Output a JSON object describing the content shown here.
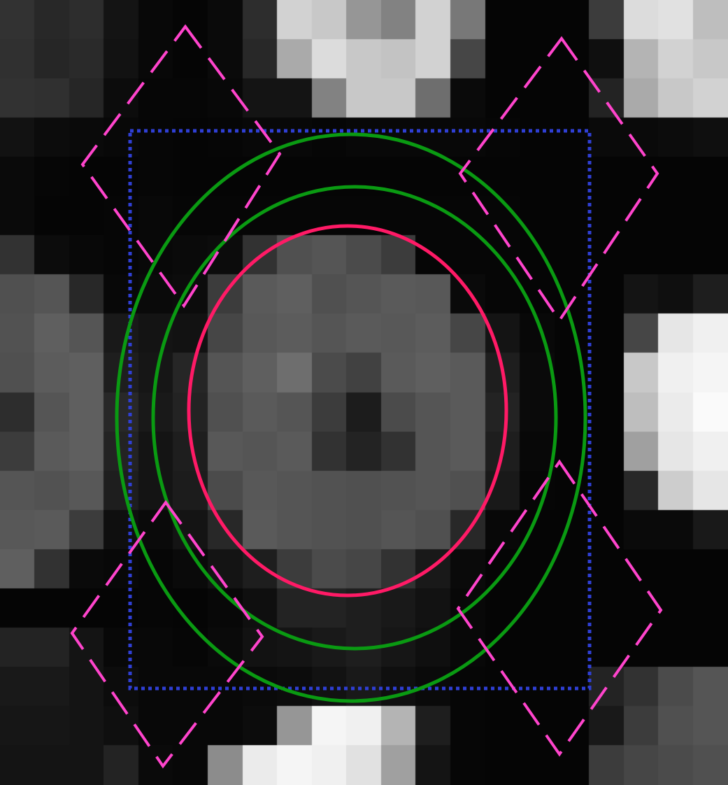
{
  "image": {
    "rows": 20,
    "cols": 21,
    "pixels": [
      [
        50,
        40,
        45,
        20,
        8,
        5,
        10,
        45,
        210,
        200,
        150,
        130,
        210,
        120,
        5,
        5,
        5,
        60,
        220,
        225,
        190
      ],
      [
        48,
        38,
        42,
        18,
        8,
        5,
        10,
        40,
        170,
        220,
        200,
        195,
        210,
        70,
        5,
        5,
        5,
        15,
        180,
        210,
        200
      ],
      [
        50,
        48,
        38,
        12,
        6,
        6,
        8,
        20,
        20,
        130,
        200,
        200,
        110,
        10,
        5,
        5,
        5,
        35,
        170,
        200,
        210
      ],
      [
        18,
        12,
        10,
        8,
        6,
        5,
        6,
        8,
        8,
        6,
        8,
        8,
        8,
        8,
        6,
        5,
        5,
        10,
        10,
        12,
        15
      ],
      [
        10,
        6,
        5,
        5,
        6,
        5,
        5,
        5,
        5,
        5,
        5,
        5,
        5,
        5,
        5,
        5,
        5,
        5,
        5,
        5,
        5
      ],
      [
        10,
        5,
        5,
        6,
        8,
        6,
        6,
        6,
        6,
        6,
        6,
        6,
        6,
        6,
        6,
        5,
        5,
        5,
        5,
        5,
        5
      ],
      [
        50,
        12,
        8,
        6,
        8,
        10,
        12,
        50,
        80,
        85,
        75,
        60,
        6,
        6,
        6,
        5,
        5,
        5,
        5,
        5,
        5
      ],
      [
        80,
        85,
        40,
        8,
        10,
        12,
        60,
        90,
        95,
        80,
        85,
        90,
        88,
        10,
        6,
        5,
        5,
        5,
        20,
        15,
        30
      ],
      [
        82,
        95,
        85,
        25,
        20,
        18,
        70,
        88,
        92,
        85,
        90,
        88,
        92,
        70,
        20,
        8,
        5,
        5,
        70,
        230,
        240
      ],
      [
        80,
        92,
        95,
        30,
        22,
        38,
        85,
        95,
        110,
        75,
        65,
        90,
        95,
        90,
        30,
        10,
        5,
        5,
        200,
        240,
        245
      ],
      [
        45,
        85,
        95,
        40,
        25,
        35,
        80,
        90,
        85,
        60,
        28,
        75,
        85,
        90,
        35,
        10,
        5,
        5,
        190,
        235,
        250
      ],
      [
        60,
        90,
        95,
        35,
        20,
        30,
        88,
        85,
        90,
        50,
        35,
        50,
        85,
        90,
        30,
        8,
        5,
        5,
        160,
        230,
        240
      ],
      [
        85,
        82,
        88,
        30,
        20,
        28,
        75,
        88,
        85,
        82,
        80,
        82,
        85,
        80,
        25,
        6,
        5,
        5,
        40,
        205,
        230
      ],
      [
        88,
        90,
        60,
        15,
        10,
        20,
        40,
        90,
        85,
        82,
        80,
        85,
        80,
        40,
        8,
        5,
        5,
        5,
        10,
        10,
        25
      ],
      [
        95,
        50,
        10,
        8,
        6,
        10,
        20,
        30,
        60,
        75,
        70,
        50,
        25,
        10,
        5,
        5,
        5,
        5,
        5,
        5,
        5
      ],
      [
        5,
        5,
        5,
        5,
        6,
        5,
        8,
        15,
        35,
        35,
        30,
        25,
        18,
        8,
        5,
        5,
        5,
        5,
        5,
        5,
        5
      ],
      [
        35,
        35,
        20,
        8,
        8,
        6,
        10,
        18,
        20,
        25,
        30,
        22,
        15,
        8,
        5,
        5,
        5,
        5,
        5,
        5,
        5
      ],
      [
        25,
        25,
        20,
        12,
        8,
        8,
        8,
        10,
        12,
        18,
        25,
        15,
        10,
        6,
        5,
        5,
        5,
        35,
        50,
        75,
        85
      ],
      [
        22,
        22,
        20,
        15,
        8,
        8,
        8,
        12,
        150,
        245,
        240,
        180,
        30,
        6,
        5,
        5,
        5,
        25,
        60,
        80,
        85
      ],
      [
        20,
        20,
        20,
        35,
        10,
        8,
        140,
        235,
        245,
        240,
        225,
        160,
        20,
        6,
        5,
        5,
        5,
        60,
        70,
        75,
        80
      ]
    ]
  },
  "overlays": {
    "colors": {
      "dotted_box": "#2f3fd4",
      "outer_ellipse": "#0a9a12",
      "inner_ellipse": "#0a9a12",
      "core_ellipse": "#ff1a66",
      "diamonds": "#ff44cc"
    }
  }
}
